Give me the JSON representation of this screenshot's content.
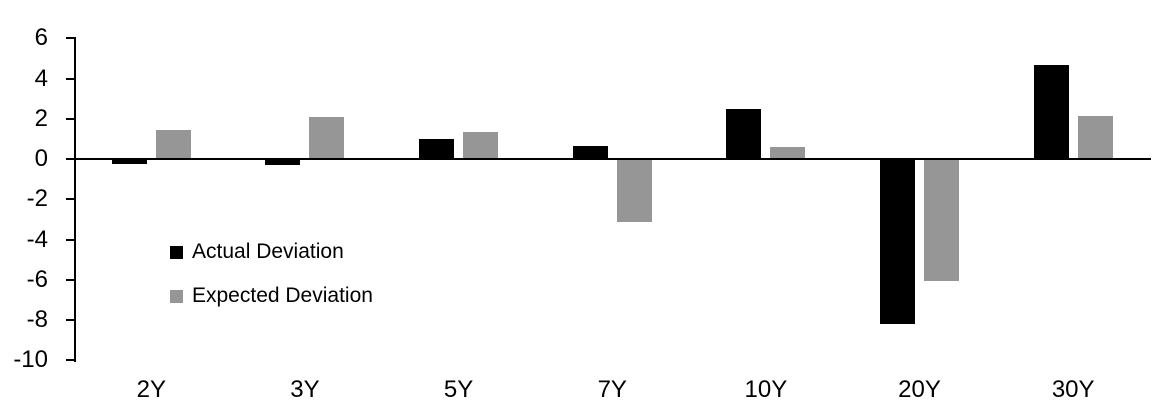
{
  "chart_data": {
    "type": "bar",
    "title": "",
    "xlabel": "",
    "ylabel": "",
    "categories": [
      "2Y",
      "3Y",
      "5Y",
      "7Y",
      "10Y",
      "20Y",
      "30Y"
    ],
    "series": [
      {
        "name": "Actual Deviation",
        "color": "#000000",
        "values": [
          -0.25,
          -0.3,
          1.0,
          0.65,
          2.5,
          -8.2,
          4.65
        ]
      },
      {
        "name": "Expected Deviation",
        "color": "#969696",
        "values": [
          1.45,
          2.1,
          1.35,
          -3.15,
          0.6,
          -6.05,
          2.15
        ]
      }
    ],
    "ylim": [
      -10,
      6
    ],
    "yticks": [
      6,
      4,
      2,
      0,
      -2,
      -4,
      -6,
      -8,
      -10
    ],
    "grid": false,
    "legend_position": "inside-left",
    "axis_color": "#000000",
    "background_color": "#ffffff"
  }
}
